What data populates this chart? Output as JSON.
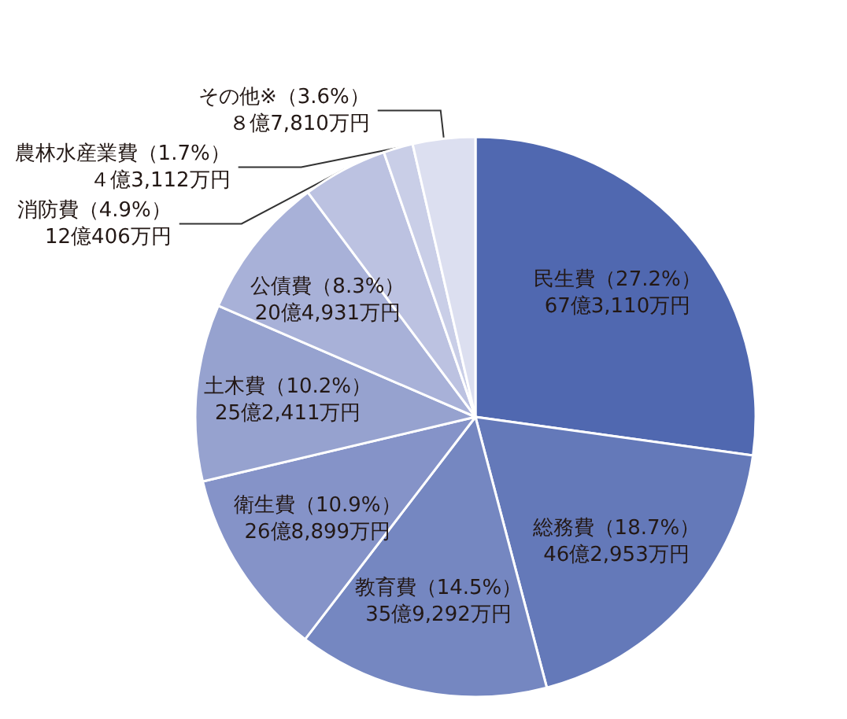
{
  "chart_data": {
    "type": "pie",
    "categories": [
      "民生費",
      "総務費",
      "教育費",
      "衛生費",
      "土木費",
      "公債費",
      "消防費",
      "農林水産業費",
      "その他※"
    ],
    "values": [
      27.2,
      18.7,
      14.5,
      10.9,
      10.2,
      8.3,
      4.9,
      1.7,
      3.6
    ],
    "value_labels": [
      "（27.2%）67億3,110万円",
      "（18.7%）46億2,953万円",
      "（14.5%）35億9,292万円",
      "（10.9%）26億8,899万円",
      "（10.2%）25億2,411万円",
      "（8.3%）20億4,931万円",
      "（4.9%）12億406万円",
      "（1.7%）４億3,112万円",
      "（3.6%）８億7,810万円"
    ],
    "colors": [
      "#5068b0",
      "#6479b9",
      "#7587c1",
      "#8593c8",
      "#96a2cf",
      "#a8b1d8",
      "#bcc2e1",
      "#c9cee7",
      "#dcdff0"
    ],
    "legend": false
  }
}
